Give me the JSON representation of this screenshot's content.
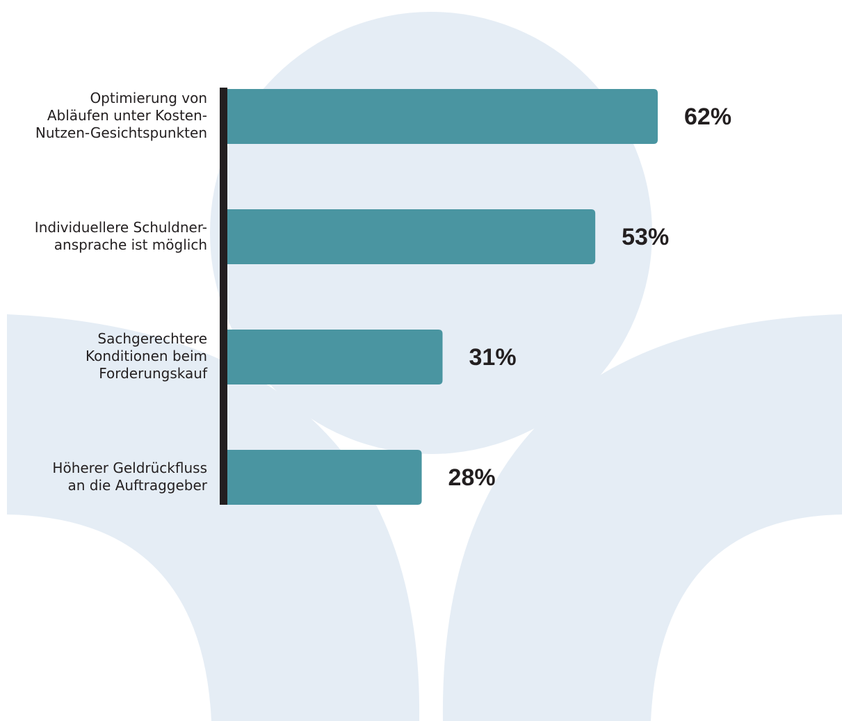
{
  "colors": {
    "bar": "#4a95a1",
    "axis": "#231f20",
    "background_shape": "#e5edf5",
    "text": "#231f20"
  },
  "chart_data": {
    "type": "bar",
    "orientation": "horizontal",
    "categories": [
      "Optimierung von\nAbläufen unter Kosten-\nNutzen-Gesichtspunkten",
      "Individuellere Schuldner-\nansprache ist möglich",
      "Sachgerechtere\nKonditionen beim\nForderungskauf",
      "Höherer Geldrückfluss\nan die Auftraggeber"
    ],
    "values": [
      62,
      53,
      31,
      28
    ],
    "value_labels": [
      "62%",
      "53%",
      "31%",
      "28%"
    ],
    "unit": "%",
    "xlim": [
      0,
      100
    ],
    "grid": false,
    "legend": "none"
  }
}
